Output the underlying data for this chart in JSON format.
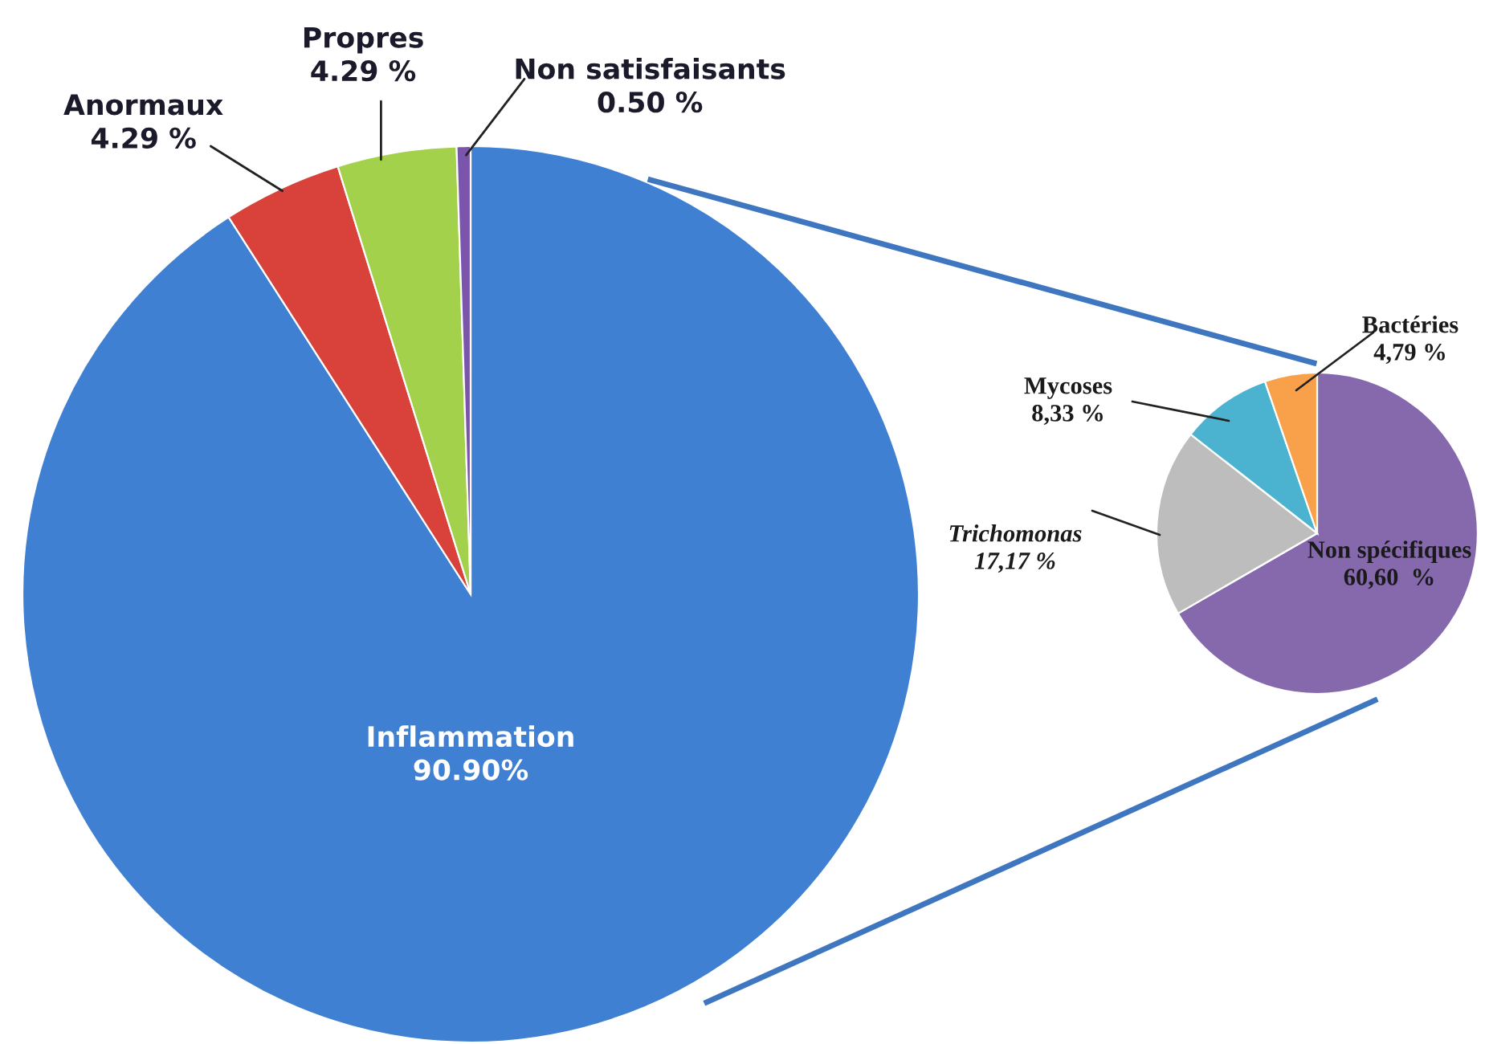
{
  "chart_data": [
    {
      "type": "pie",
      "categories": [
        "Inflammation",
        "Anormaux",
        "Propres",
        "Non satisfaisants"
      ],
      "values": [
        90.9,
        4.29,
        4.29,
        0.5
      ],
      "colors": [
        "#3f80d2",
        "#d9413b",
        "#a3d14c",
        "#7b55ab"
      ],
      "value_labels": [
        "90.90%",
        "4.29 %",
        "4.29 %",
        "0.50 %"
      ]
    },
    {
      "type": "pie",
      "categories": [
        "Non spécifiques",
        "Trichomonas",
        "Mycoses",
        "Bactéries"
      ],
      "values": [
        60.6,
        17.17,
        8.33,
        4.79
      ],
      "colors": [
        "#8668ad",
        "#bdbdbd",
        "#4bb3cf",
        "#f8a04a"
      ],
      "value_labels": [
        "60,60  %",
        "17,17 %",
        "8,33 %",
        "4,79 %"
      ]
    }
  ]
}
